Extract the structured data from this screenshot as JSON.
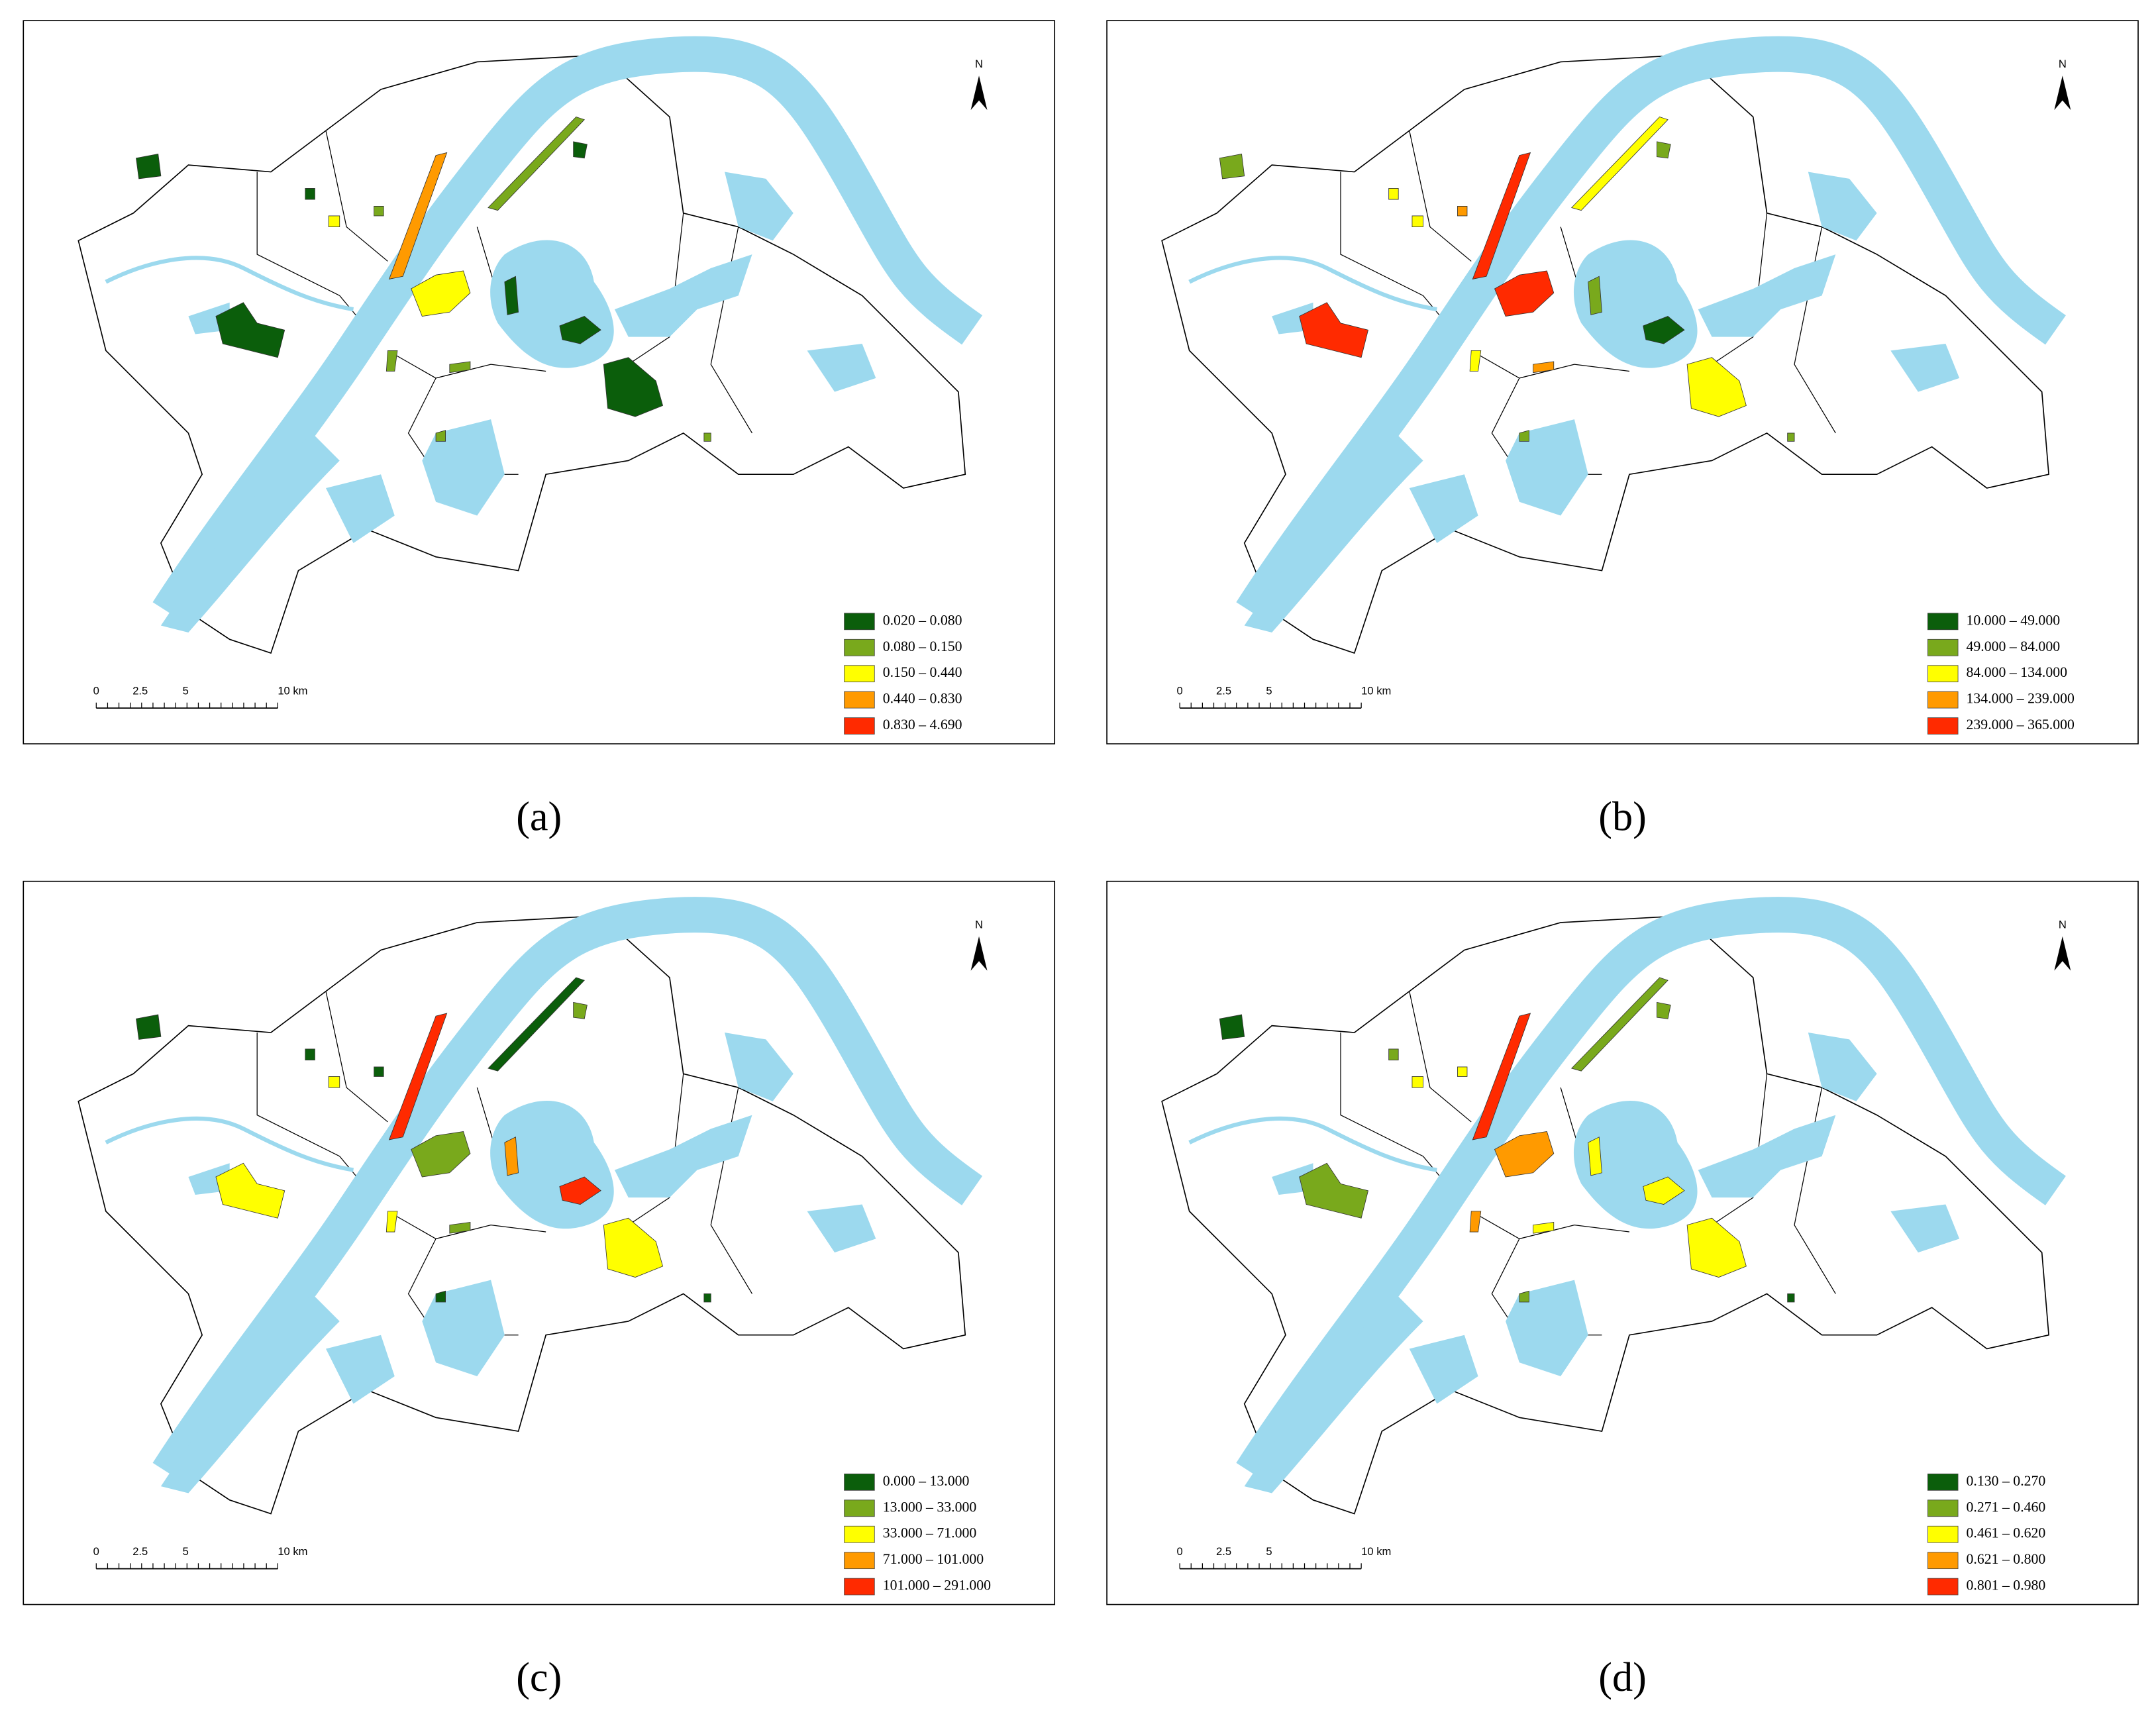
{
  "panels": [
    {
      "caption": "(a)",
      "north": "N",
      "scale_labels": [
        "0",
        "2.5",
        "5",
        "10 km"
      ],
      "legend": [
        {
          "label": "0.020 – 0.080",
          "color": "#0b5e0b"
        },
        {
          "label": "0.080 – 0.150",
          "color": "#79a91c"
        },
        {
          "label": "0.150 – 0.440",
          "color": "#ffff00"
        },
        {
          "label": "0.440 – 0.830",
          "color": "#ff9a00"
        },
        {
          "label": "0.830 – 4.690",
          "color": "#ff2a00"
        }
      ]
    },
    {
      "caption": "(b)",
      "north": "N",
      "scale_labels": [
        "0",
        "2.5",
        "5",
        "10 km"
      ],
      "legend": [
        {
          "label": "10.000 – 49.000",
          "color": "#0b5e0b"
        },
        {
          "label": "49.000 – 84.000",
          "color": "#79a91c"
        },
        {
          "label": "84.000 – 134.000",
          "color": "#ffff00"
        },
        {
          "label": "134.000 – 239.000",
          "color": "#ff9a00"
        },
        {
          "label": "239.000 – 365.000",
          "color": "#ff2a00"
        }
      ]
    },
    {
      "caption": "(c)",
      "north": "N",
      "scale_labels": [
        "0",
        "2.5",
        "5",
        "10 km"
      ],
      "legend": [
        {
          "label": "0.000 – 13.000",
          "color": "#0b5e0b"
        },
        {
          "label": "13.000 – 33.000",
          "color": "#79a91c"
        },
        {
          "label": "33.000 – 71.000",
          "color": "#ffff00"
        },
        {
          "label": "71.000 – 101.000",
          "color": "#ff9a00"
        },
        {
          "label": "101.000 – 291.000",
          "color": "#ff2a00"
        }
      ]
    },
    {
      "caption": "(d)",
      "north": "N",
      "scale_labels": [
        "0",
        "2.5",
        "5",
        "10 km"
      ],
      "legend": [
        {
          "label": "0.130 – 0.270",
          "color": "#0b5e0b"
        },
        {
          "label": "0.271 – 0.460",
          "color": "#79a91c"
        },
        {
          "label": "0.461 – 0.620",
          "color": "#ffff00"
        },
        {
          "label": "0.621 – 0.800",
          "color": "#ff9a00"
        },
        {
          "label": "0.801 – 0.980",
          "color": "#ff2a00"
        }
      ]
    }
  ]
}
